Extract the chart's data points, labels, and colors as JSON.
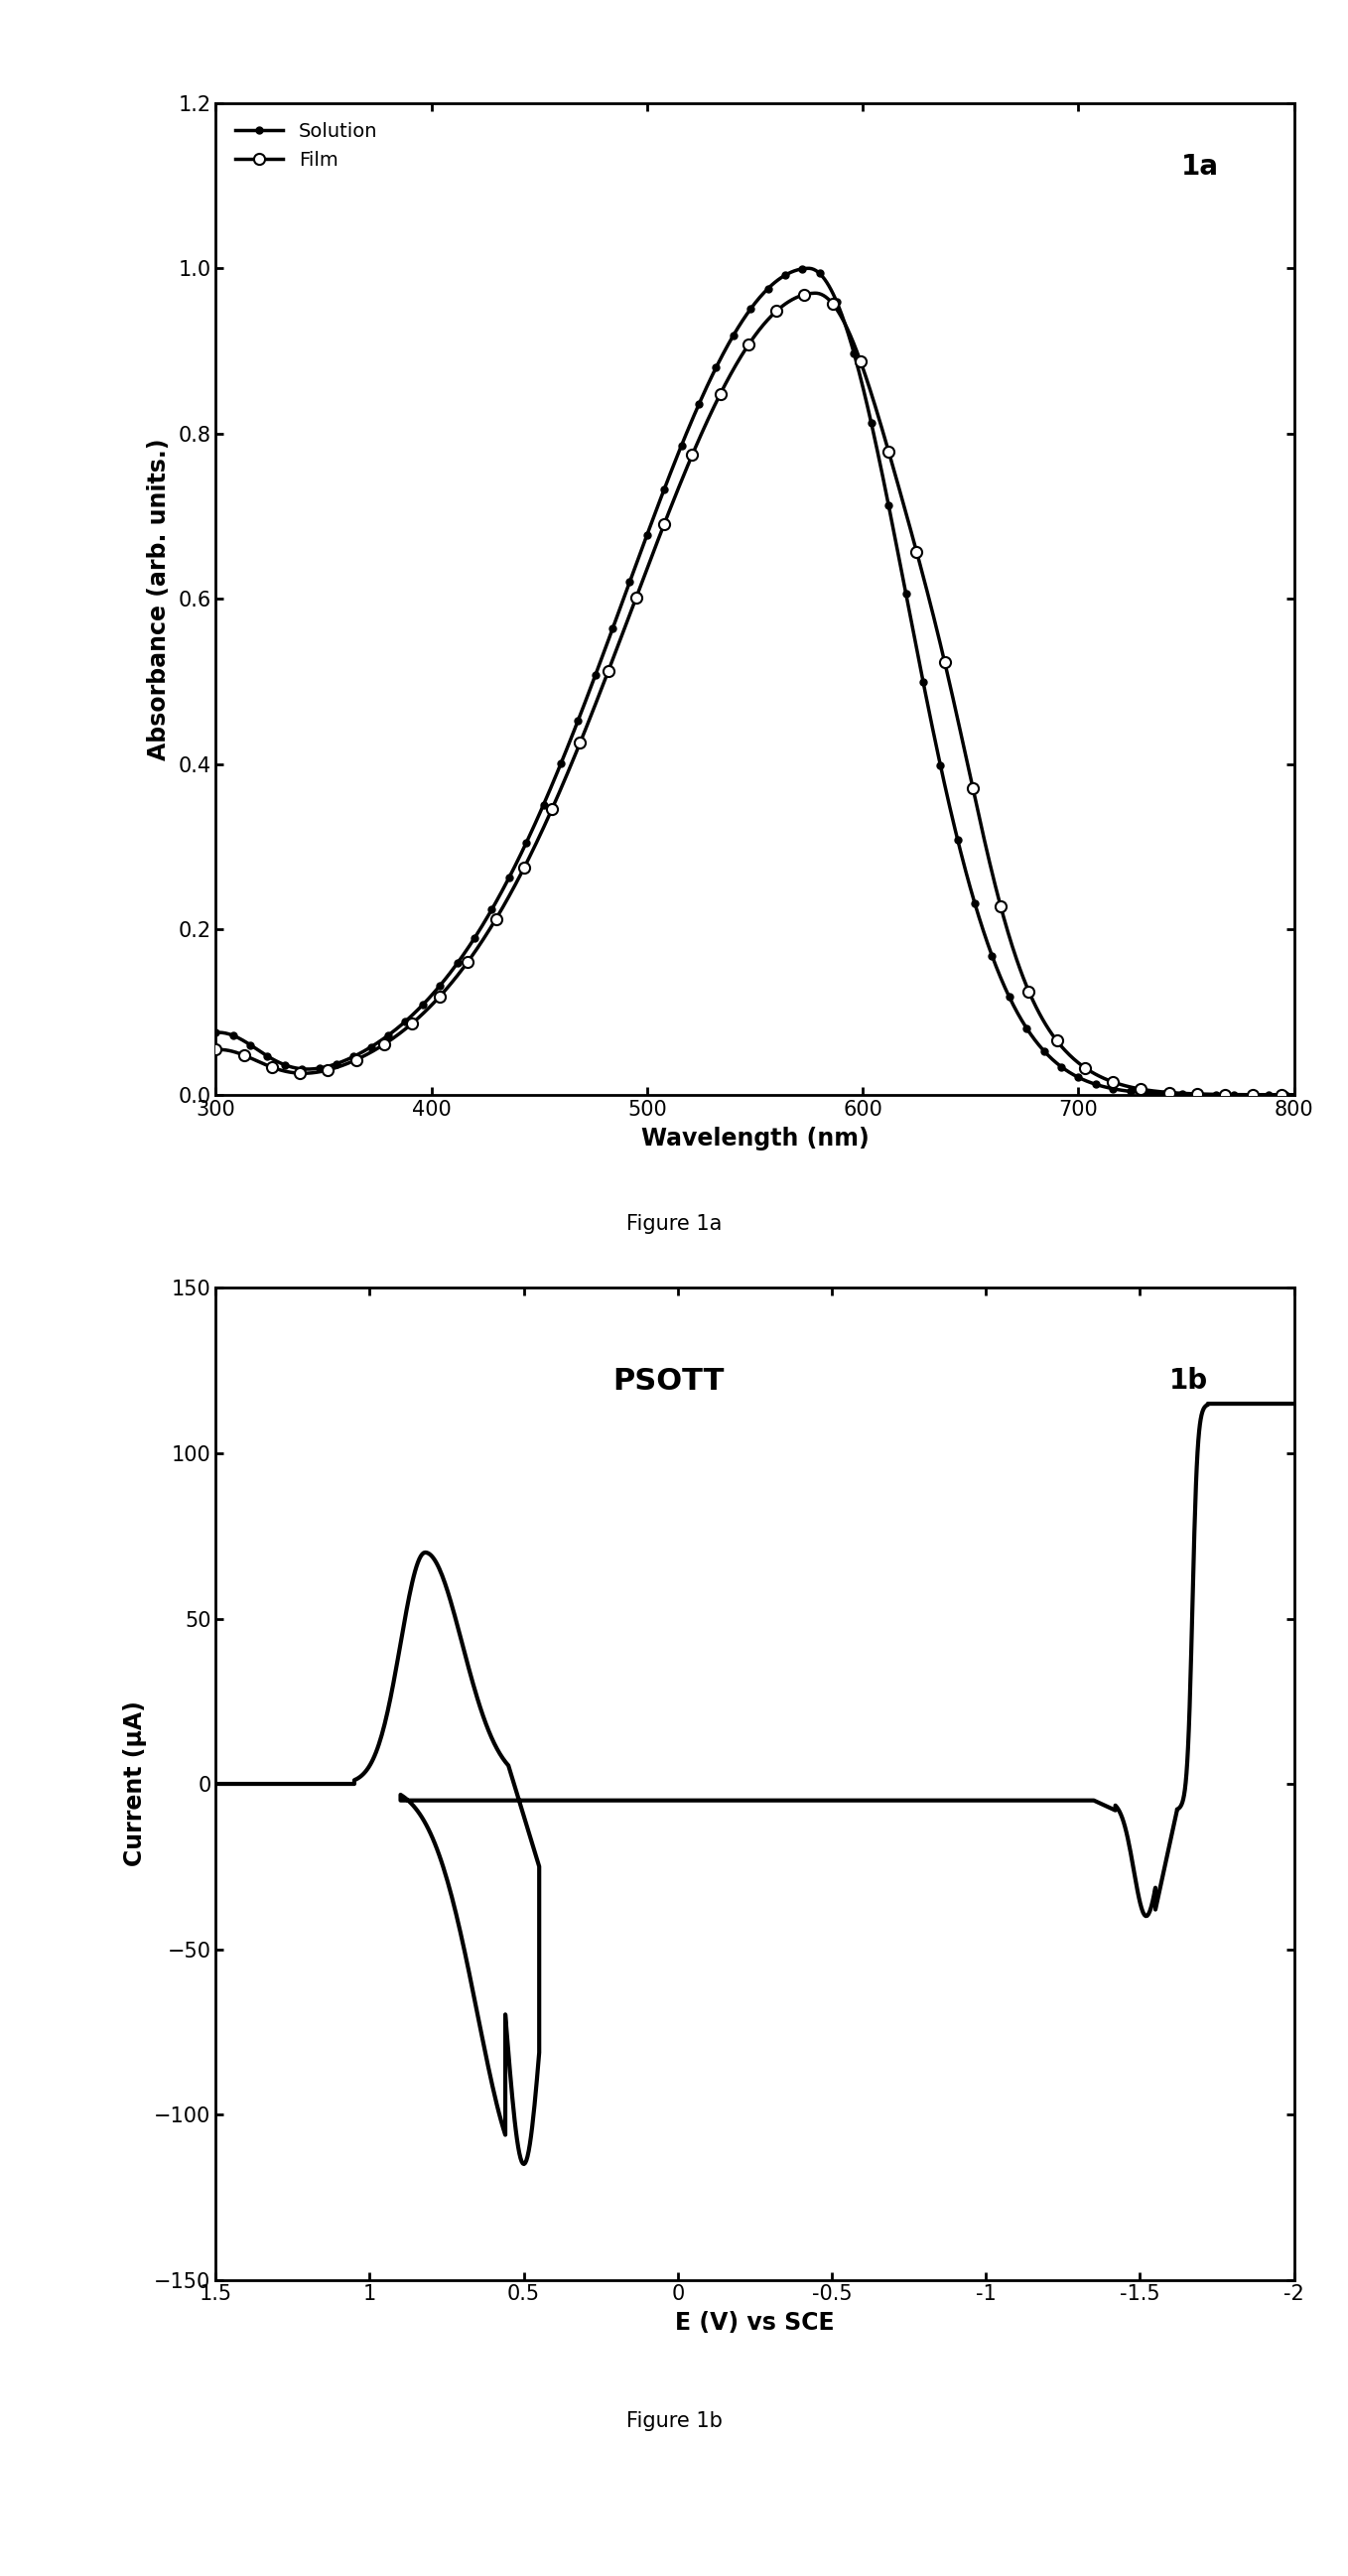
{
  "fig1a": {
    "title_label": "1a",
    "xlabel": "Wavelength (nm)",
    "ylabel": "Absorbance (arb. units.)",
    "xlim": [
      300,
      800
    ],
    "ylim": [
      0,
      1.2
    ],
    "xticks": [
      300,
      400,
      500,
      600,
      700,
      800
    ],
    "yticks": [
      0,
      0.2,
      0.4,
      0.6,
      0.8,
      1.0,
      1.2
    ],
    "legend_solution": "Solution",
    "legend_film": "Film"
  },
  "fig1b": {
    "title_label": "1b",
    "annotation": "PSOTT",
    "xlabel": "E (V) vs SCE",
    "ylabel": "Current (μA)",
    "xlim": [
      1.5,
      -2.0
    ],
    "ylim": [
      -150,
      150
    ],
    "xticks": [
      1.5,
      1.0,
      0.5,
      0.0,
      -0.5,
      -1.0,
      -1.5,
      -2.0
    ],
    "xticklabels": [
      "1.5",
      "1",
      "0.5",
      "0",
      "-0.5",
      "-1",
      "-1.5",
      "-2"
    ],
    "yticks": [
      -150,
      -100,
      -50,
      0,
      50,
      100,
      150
    ]
  },
  "figure1a_caption": "Figure 1a",
  "figure1b_caption": "Figure 1b",
  "line_color": "#000000",
  "background_color": "#ffffff"
}
